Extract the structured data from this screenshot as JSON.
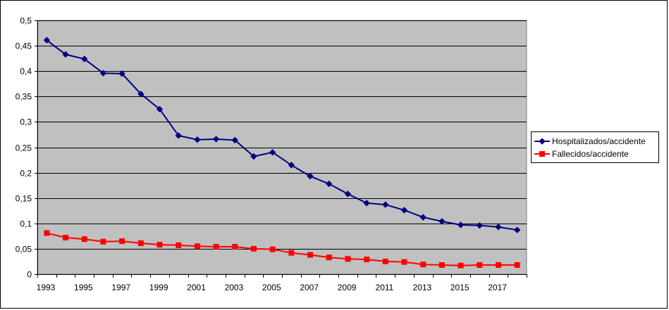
{
  "chart_data": {
    "type": "line",
    "title": "",
    "xlabel": "",
    "ylabel": "",
    "x": [
      1993,
      1994,
      1995,
      1996,
      1997,
      1998,
      1999,
      2000,
      2001,
      2002,
      2003,
      2004,
      2005,
      2006,
      2007,
      2008,
      2009,
      2010,
      2011,
      2012,
      2013,
      2014,
      2015,
      2016,
      2017,
      2018
    ],
    "x_tick_labels": [
      "1993",
      "1995",
      "1997",
      "1999",
      "2001",
      "2003",
      "2005",
      "2007",
      "2009",
      "2011",
      "2013",
      "2015",
      "2017"
    ],
    "ylim": [
      0,
      0.5
    ],
    "y_tick_labels": [
      "0",
      "0,05",
      "0,1",
      "0,15",
      "0,2",
      "0,25",
      "0,3",
      "0,35",
      "0,4",
      "0,45",
      "0,5"
    ],
    "grid": true,
    "legend_position": "right",
    "plot_background": "#C0C0C0",
    "series": [
      {
        "name": "Hospitalizados/accidente",
        "color": "#000080",
        "marker": "diamond",
        "values": [
          0.461,
          0.433,
          0.424,
          0.396,
          0.395,
          0.355,
          0.325,
          0.273,
          0.265,
          0.266,
          0.264,
          0.232,
          0.24,
          0.215,
          0.193,
          0.178,
          0.158,
          0.14,
          0.137,
          0.126,
          0.112,
          0.104,
          0.097,
          0.096,
          0.093,
          0.087
        ]
      },
      {
        "name": "Fallecidos/accidente",
        "color": "#FF0000",
        "marker": "square",
        "values": [
          0.081,
          0.072,
          0.069,
          0.064,
          0.065,
          0.061,
          0.058,
          0.057,
          0.055,
          0.054,
          0.054,
          0.05,
          0.049,
          0.042,
          0.038,
          0.033,
          0.03,
          0.029,
          0.025,
          0.024,
          0.019,
          0.018,
          0.017,
          0.018,
          0.018,
          0.018
        ]
      }
    ]
  }
}
